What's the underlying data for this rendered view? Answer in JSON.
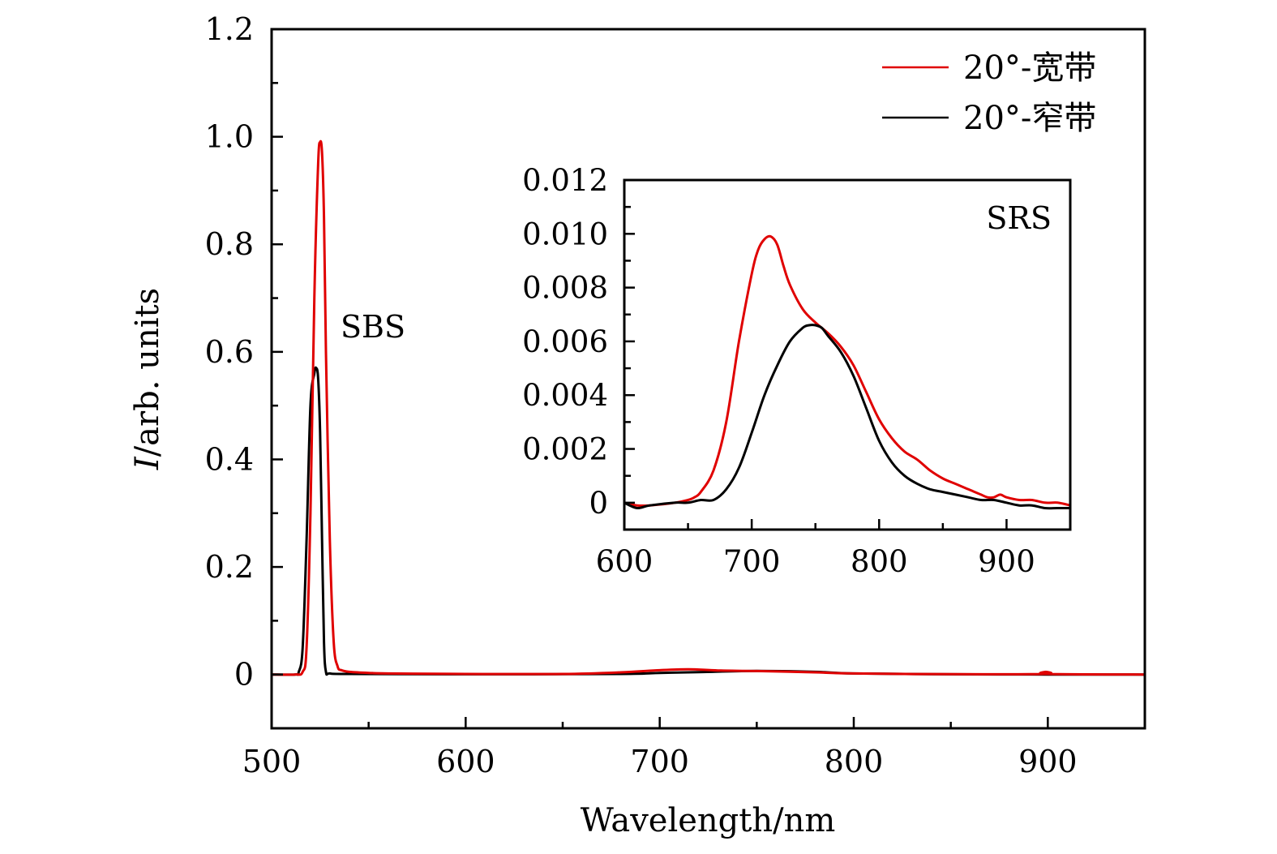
{
  "chart_data": [
    {
      "id": "main",
      "type": "line",
      "title": "",
      "xlabel": "Wavelength/nm",
      "ylabel_italic": "I",
      "ylabel_rest": "/arb. units",
      "xlim": [
        500,
        950
      ],
      "ylim": [
        -0.1,
        1.2
      ],
      "xticks": [
        500,
        600,
        700,
        800,
        900
      ],
      "xtick_labels": [
        "500",
        "600",
        "700",
        "800",
        "900"
      ],
      "x_minor_step": 50,
      "yticks": [
        0,
        0.2,
        0.4,
        0.6,
        0.8,
        1.0,
        1.2
      ],
      "ytick_labels": [
        "0",
        "0.2",
        "0.4",
        "0.6",
        "0.8",
        "1.0",
        "1.2"
      ],
      "y_minor_step": 0.1,
      "grid": false,
      "legend": {
        "position": "top-right",
        "entries": [
          {
            "label": "20°-宽带",
            "color": "#e00000"
          },
          {
            "label": "20°-窄带",
            "color": "#000000"
          }
        ]
      },
      "annotations": [
        {
          "text": "SBS",
          "x": 536,
          "y": 0.63
        }
      ],
      "series": [
        {
          "name": "20°-宽带",
          "color": "#e00000",
          "x": [
            500,
            512,
            516,
            518,
            520,
            522,
            524,
            525,
            526,
            527,
            528,
            530,
            532,
            534,
            536,
            540,
            550,
            560,
            600,
            650,
            680,
            700,
            715,
            730,
            750,
            780,
            800,
            850,
            898,
            899,
            900,
            950
          ],
          "y": [
            0,
            0,
            0.005,
            0.05,
            0.3,
            0.7,
            0.95,
            0.99,
            0.97,
            0.85,
            0.6,
            0.25,
            0.06,
            0.015,
            0.008,
            0.005,
            0.003,
            0.002,
            0.001,
            0.001,
            0.004,
            0.008,
            0.0098,
            0.0075,
            0.0065,
            0.004,
            0.002,
            0.0006,
            0.001,
            0.005,
            0.001,
            0
          ]
        },
        {
          "name": "20°-窄带",
          "color": "#000000",
          "x": [
            500,
            512,
            514,
            516,
            518,
            520,
            522,
            523,
            524,
            525,
            526,
            527,
            528,
            530,
            540,
            600,
            680,
            700,
            720,
            750,
            780,
            800,
            850,
            900,
            950
          ],
          "y": [
            0,
            0,
            0.005,
            0.05,
            0.25,
            0.5,
            0.56,
            0.57,
            0.55,
            0.45,
            0.25,
            0.06,
            0.005,
            0.002,
            0.001,
            0.0005,
            0.001,
            0.003,
            0.0045,
            0.0066,
            0.005,
            0.002,
            0.0005,
            0,
            0
          ]
        }
      ]
    },
    {
      "id": "inset",
      "type": "line",
      "title": "",
      "xlabel": "",
      "ylabel": "",
      "xlim": [
        600,
        950
      ],
      "ylim": [
        -0.001,
        0.012
      ],
      "xticks": [
        600,
        700,
        800,
        900
      ],
      "xtick_labels": [
        "600",
        "700",
        "800",
        "900"
      ],
      "x_minor_step": 50,
      "yticks": [
        0,
        0.002,
        0.004,
        0.006,
        0.008,
        0.01,
        0.012
      ],
      "ytick_labels": [
        "0",
        "0.002",
        "0.004",
        "0.006",
        "0.008",
        "0.010",
        "0.012"
      ],
      "y_minor_step": 0.001,
      "grid": false,
      "annotations": [
        {
          "text": "SRS",
          "x": 905,
          "y": 0.0107
        }
      ],
      "series": [
        {
          "name": "20°-宽带",
          "color": "#e00000",
          "x": [
            600,
            610,
            620,
            640,
            650,
            655,
            660,
            670,
            680,
            690,
            700,
            705,
            710,
            715,
            720,
            725,
            730,
            740,
            750,
            760,
            770,
            780,
            790,
            800,
            810,
            820,
            830,
            840,
            850,
            860,
            870,
            880,
            885,
            890,
            895,
            900,
            910,
            920,
            930,
            940,
            950
          ],
          "y": [
            0.0,
            -0.0001,
            -0.0001,
            0.0,
            0.0001,
            0.0002,
            0.0004,
            0.0012,
            0.003,
            0.006,
            0.0085,
            0.0094,
            0.0098,
            0.0099,
            0.0096,
            0.0088,
            0.0081,
            0.0072,
            0.0067,
            0.0063,
            0.0058,
            0.0051,
            0.0041,
            0.0031,
            0.0024,
            0.0019,
            0.0016,
            0.0012,
            0.0009,
            0.0007,
            0.0005,
            0.0003,
            0.0002,
            0.0002,
            0.0003,
            0.0002,
            0.0001,
            0.0001,
            0.0,
            0.0,
            -0.0001
          ]
        },
        {
          "name": "20°-窄带",
          "color": "#000000",
          "x": [
            600,
            610,
            620,
            640,
            650,
            660,
            670,
            680,
            690,
            700,
            710,
            720,
            730,
            740,
            745,
            750,
            755,
            760,
            770,
            780,
            790,
            800,
            810,
            820,
            830,
            840,
            850,
            860,
            870,
            880,
            890,
            900,
            910,
            920,
            930,
            940,
            950
          ],
          "y": [
            0.0,
            -0.0002,
            -0.0001,
            0.0,
            0.0,
            0.0001,
            0.0001,
            0.0005,
            0.0013,
            0.0026,
            0.004,
            0.0051,
            0.006,
            0.0065,
            0.0066,
            0.0066,
            0.0065,
            0.0062,
            0.0056,
            0.0047,
            0.0035,
            0.0023,
            0.0015,
            0.001,
            0.0007,
            0.0005,
            0.0004,
            0.0003,
            0.0002,
            0.0001,
            0.0001,
            0.0,
            -0.0001,
            -0.0001,
            -0.0002,
            -0.0002,
            -0.0002
          ]
        }
      ]
    }
  ]
}
